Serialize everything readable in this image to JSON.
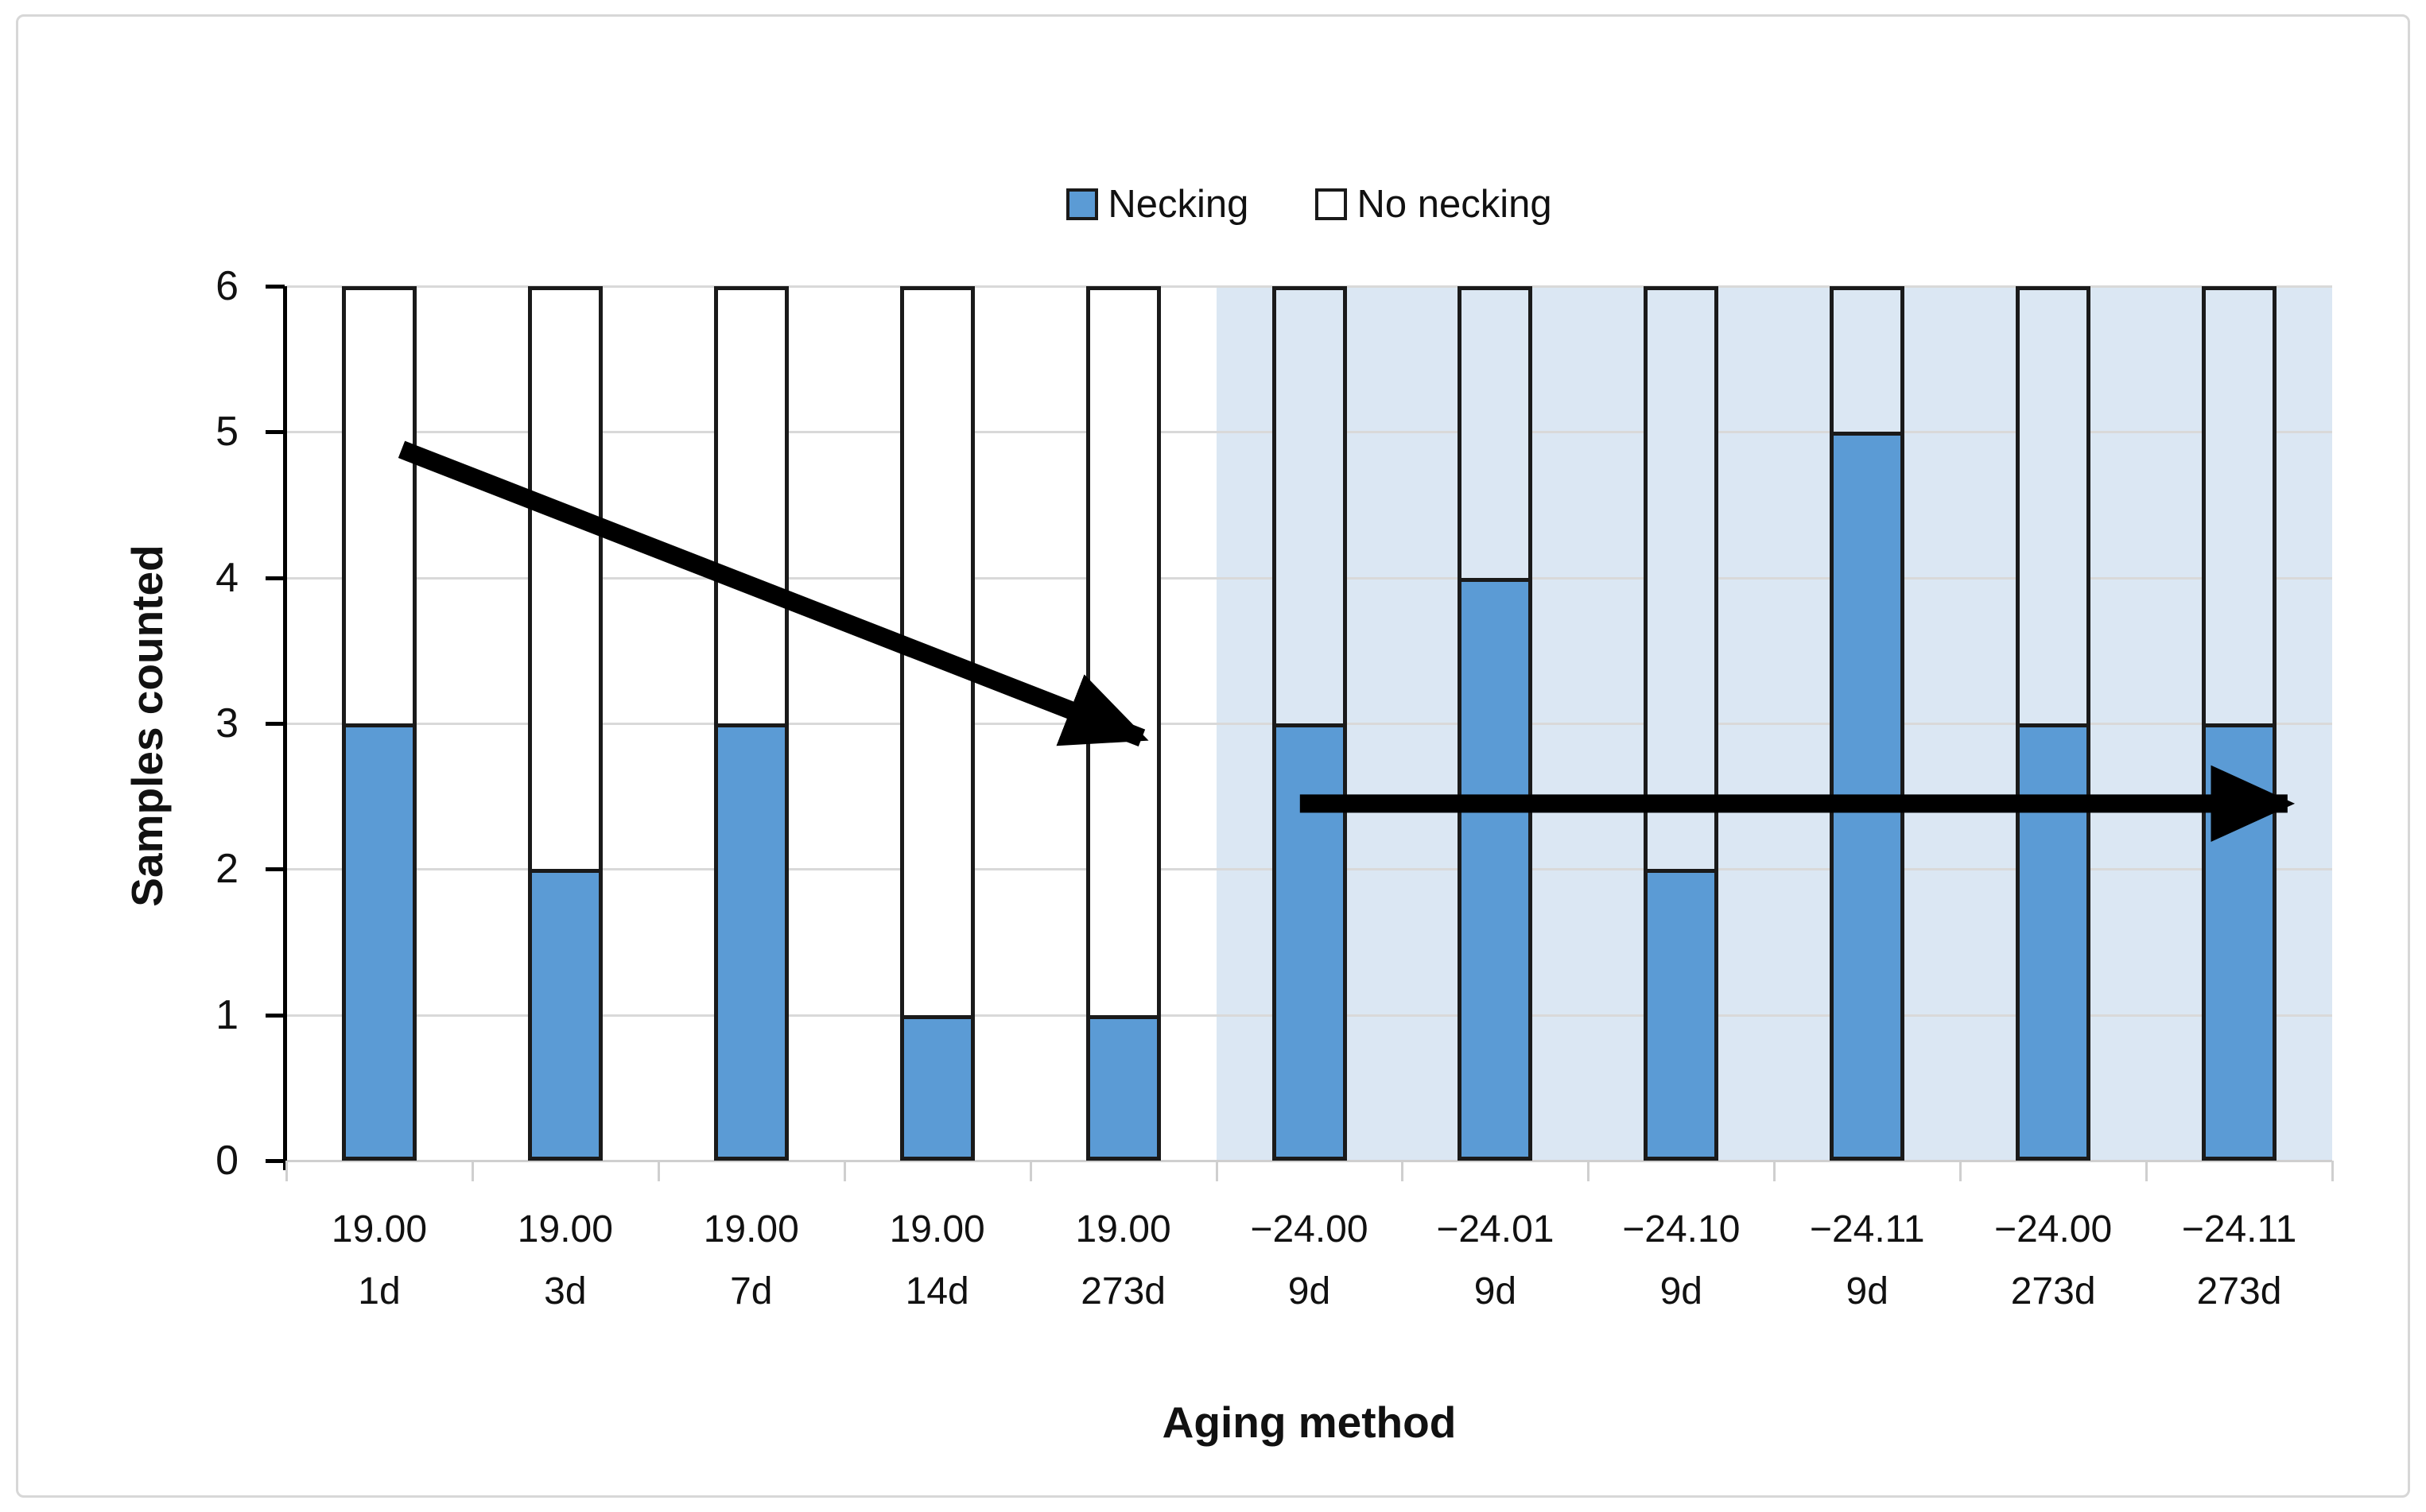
{
  "chart_data": {
    "type": "bar",
    "stacked": true,
    "title": "",
    "xlabel": "Aging method",
    "ylabel": "Samples counted",
    "ylim": [
      0,
      6
    ],
    "yticks": [
      0,
      1,
      2,
      3,
      4,
      5,
      6
    ],
    "grid": true,
    "legend_position": "top-center",
    "categories": [
      {
        "line1": "19.00",
        "line2": "1d"
      },
      {
        "line1": "19.00",
        "line2": "3d"
      },
      {
        "line1": "19.00",
        "line2": "7d"
      },
      {
        "line1": "19.00",
        "line2": "14d"
      },
      {
        "line1": "19.00",
        "line2": "273d"
      },
      {
        "line1": "−24.00",
        "line2": "9d"
      },
      {
        "line1": "−24.01",
        "line2": "9d"
      },
      {
        "line1": "−24.10",
        "line2": "9d"
      },
      {
        "line1": "−24.11",
        "line2": "9d"
      },
      {
        "line1": "−24.00",
        "line2": "273d"
      },
      {
        "line1": "−24.11",
        "line2": "273d"
      }
    ],
    "series": [
      {
        "name": "Necking",
        "color": "#5B9BD5",
        "values": [
          3,
          2,
          3,
          1,
          1,
          3,
          4,
          2,
          5,
          3,
          3
        ]
      },
      {
        "name": "No necking",
        "color": "#FFFFFF",
        "values": [
          3,
          4,
          3,
          5,
          5,
          3,
          2,
          4,
          1,
          3,
          3
        ]
      }
    ],
    "bar_border_color": "#1a1a1a",
    "gridline_color": "#d9d9d9",
    "highlight_region": {
      "start_category_index": 5,
      "end_category_index": 10,
      "color": "#dbe7f3",
      "no_necking_fill_matches_region": true
    },
    "annotations": [
      {
        "name": "decreasing-trend-arrow",
        "color": "#000000",
        "from_slot": 0.62,
        "from_value": 4.88,
        "to_slot": 4.6,
        "to_value": 2.9
      },
      {
        "name": "constant-trend-arrow",
        "color": "#000000",
        "from_slot": 5.45,
        "from_value": 2.45,
        "to_slot": 10.76,
        "to_value": 2.45
      }
    ]
  }
}
